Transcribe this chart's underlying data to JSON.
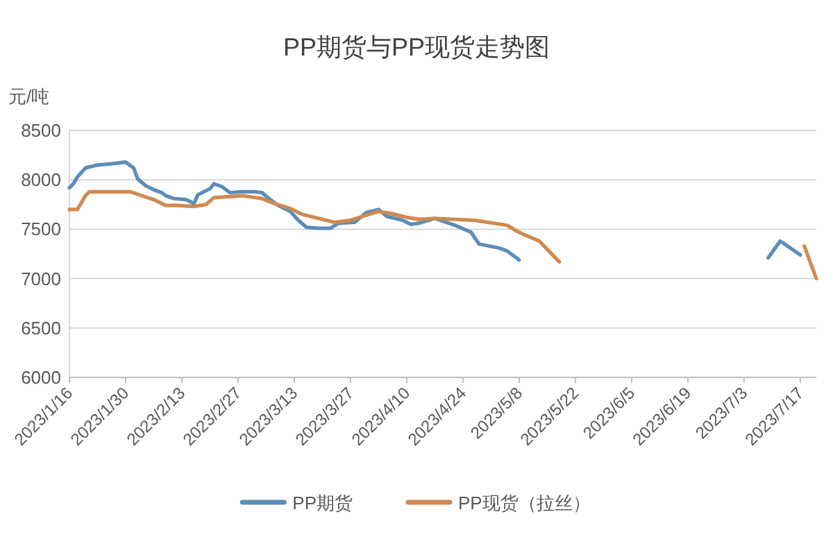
{
  "chart_data": {
    "type": "line",
    "title": "PP期货与PP现货走势图",
    "ylabel": "元/吨",
    "xlim": [
      "2023-01-16",
      "2023-07-21"
    ],
    "xticks": [
      {
        "value": "2023-01-16",
        "label": "2023/1/16"
      },
      {
        "value": "2023-01-30",
        "label": "2023/1/30"
      },
      {
        "value": "2023-02-13",
        "label": "2023/2/13"
      },
      {
        "value": "2023-02-27",
        "label": "2023/2/27"
      },
      {
        "value": "2023-03-13",
        "label": "2023/3/13"
      },
      {
        "value": "2023-03-27",
        "label": "2023/3/27"
      },
      {
        "value": "2023-04-10",
        "label": "2023/4/10"
      },
      {
        "value": "2023-04-24",
        "label": "2023/4/24"
      },
      {
        "value": "2023-05-08",
        "label": "2023/5/8"
      },
      {
        "value": "2023-05-22",
        "label": "2023/5/22"
      },
      {
        "value": "2023-06-05",
        "label": "2023/6/5"
      },
      {
        "value": "2023-06-19",
        "label": "2023/6/19"
      },
      {
        "value": "2023-07-03",
        "label": "2023/7/3"
      },
      {
        "value": "2023-07-17",
        "label": "2023/7/17"
      }
    ],
    "ylim": [
      6000,
      8500
    ],
    "yticks": [
      6000,
      6500,
      7000,
      7500,
      8000,
      8500
    ],
    "grid": "y",
    "legend": "bottom",
    "series": [
      {
        "name": "PP期货",
        "color": "#5b8db8",
        "x": [
          "2023-01-16",
          "2023-01-17",
          "2023-01-18",
          "2023-01-20",
          "2023-01-23",
          "2023-01-26",
          "2023-01-30",
          "2023-02-01",
          "2023-02-02",
          "2023-02-04",
          "2023-02-06",
          "2023-02-08",
          "2023-02-09",
          "2023-02-11",
          "2023-02-14",
          "2023-02-16",
          "2023-02-17",
          "2023-02-20",
          "2023-02-21",
          "2023-02-23",
          "2023-02-25",
          "2023-02-28",
          "2023-03-03",
          "2023-03-05",
          "2023-03-07",
          "2023-03-09",
          "2023-03-12",
          "2023-03-14",
          "2023-03-16",
          "2023-03-19",
          "2023-03-22",
          "2023-03-24",
          "2023-03-28",
          "2023-03-31",
          "2023-04-03",
          "2023-04-05",
          "2023-04-09",
          "2023-04-11",
          "2023-04-13",
          "2023-04-17",
          "2023-04-22",
          "2023-04-26",
          "2023-04-28",
          "2023-05-03",
          "2023-05-05",
          "2023-05-08",
          null,
          "2023-07-09",
          "2023-07-12",
          "2023-07-17"
        ],
        "values": [
          7920,
          7960,
          8030,
          8120,
          8150,
          8160,
          8180,
          8120,
          8010,
          7940,
          7900,
          7870,
          7840,
          7810,
          7800,
          7760,
          7850,
          7910,
          7960,
          7930,
          7870,
          7880,
          7880,
          7870,
          7800,
          7740,
          7680,
          7590,
          7520,
          7510,
          7510,
          7560,
          7570,
          7670,
          7700,
          7630,
          7590,
          7550,
          7560,
          7610,
          7540,
          7470,
          7350,
          7310,
          7280,
          7190,
          null,
          7210,
          7380,
          7240
        ]
      },
      {
        "name": "PP现货（拉丝）",
        "color": "#d08a50",
        "x": [
          "2023-01-16",
          "2023-01-18",
          "2023-01-20",
          "2023-01-21",
          "2023-01-26",
          "2023-01-31",
          "2023-02-03",
          "2023-02-06",
          "2023-02-09",
          "2023-02-12",
          "2023-02-16",
          "2023-02-19",
          "2023-02-21",
          "2023-02-25",
          "2023-02-28",
          "2023-03-05",
          "2023-03-08",
          "2023-03-12",
          "2023-03-15",
          "2023-03-19",
          "2023-03-23",
          "2023-03-27",
          "2023-03-30",
          "2023-04-03",
          "2023-04-06",
          "2023-04-10",
          "2023-04-13",
          "2023-04-17",
          "2023-04-27",
          "2023-05-05",
          "2023-05-07",
          "2023-05-09",
          "2023-05-13",
          "2023-05-18",
          null,
          "2023-07-18",
          "2023-07-21"
        ],
        "values": [
          7700,
          7700,
          7840,
          7880,
          7880,
          7880,
          7840,
          7800,
          7740,
          7740,
          7730,
          7750,
          7820,
          7830,
          7840,
          7810,
          7760,
          7710,
          7650,
          7610,
          7570,
          7590,
          7630,
          7680,
          7660,
          7620,
          7600,
          7610,
          7590,
          7540,
          7490,
          7450,
          7380,
          7170,
          null,
          7330,
          7000
        ]
      }
    ]
  }
}
